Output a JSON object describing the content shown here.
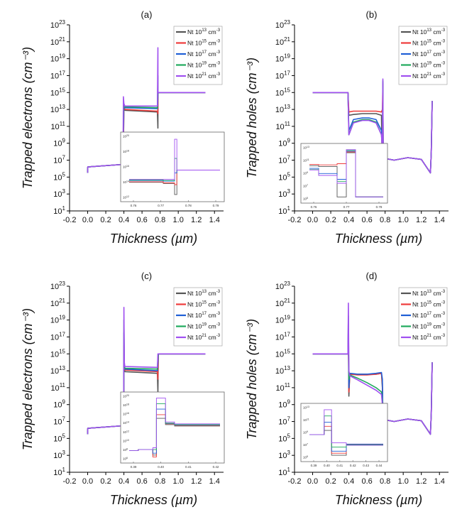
{
  "figure": {
    "common": {
      "xlabel": "Thickness (µm)",
      "x_ticks": [
        "-0.2",
        "0.0",
        "0.2",
        "0.4",
        "0.6",
        "0.8",
        "1.0",
        "1.2",
        "1.4"
      ],
      "y_exponents": [
        "1",
        "3",
        "5",
        "7",
        "9",
        "11",
        "13",
        "15",
        "17",
        "19",
        "21",
        "23"
      ],
      "y_base": "10",
      "legend": {
        "prefix": "Nt 10",
        "exponents": [
          "13",
          "15",
          "17",
          "19",
          "21"
        ],
        "unit": " cm",
        "unit_exp": "-3"
      },
      "colors": [
        "#555555",
        "#ee3b3b",
        "#1f5fd6",
        "#1faa5c",
        "#a050f0"
      ]
    }
  },
  "chart_data": [
    {
      "panel": "(a)",
      "type": "line",
      "ylabel": "Trapped electrons (cm⁻³)",
      "yscale": "log",
      "xlim": [
        -0.2,
        1.5
      ],
      "ylim": [
        1,
        1e+23
      ],
      "series": [
        {
          "name": "Nt 10^13 cm^-3",
          "x": [
            0.0,
            0.001,
            0.39,
            0.395,
            0.4,
            0.41,
            0.77,
            0.775,
            0.776,
            0.78,
            1.3
          ],
          "y_log10": [
            5.5,
            6.2,
            6.5,
            8.5,
            13.3,
            12.9,
            12.7,
            10.8,
            15.0,
            15.0,
            15.0
          ]
        },
        {
          "name": "Nt 10^15 cm^-3",
          "x": [
            0.0,
            0.001,
            0.39,
            0.395,
            0.4,
            0.41,
            0.77,
            0.775,
            0.776,
            0.78,
            1.3
          ],
          "y_log10": [
            5.5,
            6.2,
            6.5,
            8.5,
            13.4,
            13.0,
            12.8,
            12.5,
            15.0,
            15.0,
            15.0
          ]
        },
        {
          "name": "Nt 10^17 cm^-3",
          "x": [
            0.0,
            0.001,
            0.39,
            0.395,
            0.4,
            0.41,
            0.77,
            0.775,
            0.776,
            0.78,
            1.3
          ],
          "y_log10": [
            5.5,
            6.2,
            6.5,
            10.5,
            13.5,
            13.2,
            13.1,
            14.5,
            15.0,
            15.0,
            15.0
          ]
        },
        {
          "name": "Nt 10^19 cm^-3",
          "x": [
            0.0,
            0.001,
            0.39,
            0.395,
            0.4,
            0.41,
            0.77,
            0.775,
            0.776,
            0.78,
            1.3
          ],
          "y_log10": [
            5.5,
            6.2,
            6.5,
            12.0,
            13.6,
            13.3,
            13.2,
            17.0,
            15.0,
            15.0,
            15.0
          ]
        },
        {
          "name": "Nt 10^21 cm^-3",
          "x": [
            0.0,
            0.001,
            0.39,
            0.395,
            0.4,
            0.41,
            0.77,
            0.775,
            0.776,
            0.78,
            1.3
          ],
          "y_log10": [
            5.5,
            6.2,
            6.5,
            14.5,
            13.7,
            13.4,
            13.4,
            20.3,
            15.0,
            15.0,
            15.0
          ]
        }
      ],
      "inset": {
        "x_ticks": [
          "0.76",
          "0.77",
          "0.78",
          "0.79"
        ],
        "y_exponents": [
          "12",
          "14",
          "16",
          "18",
          "20"
        ]
      }
    },
    {
      "panel": "(b)",
      "type": "line",
      "ylabel": "Trapped holes (cm⁻³)",
      "yscale": "log",
      "xlim": [
        -0.2,
        1.5
      ],
      "ylim": [
        1,
        1e+23
      ],
      "series": [
        {
          "name": "Nt 10^13 cm^-3",
          "x": [
            0.0,
            0.39,
            0.4,
            0.45,
            0.55,
            0.62,
            0.7,
            0.76,
            0.77,
            0.775,
            0.78,
            0.8,
            0.9,
            1.05,
            1.2,
            1.3,
            1.31,
            1.32
          ],
          "y_log10": [
            15.0,
            15.0,
            12.3,
            12.4,
            12.5,
            12.5,
            12.5,
            12.3,
            4.5,
            15.8,
            4.5,
            7.2,
            7.0,
            7.3,
            7.1,
            5.5,
            8.0,
            14.0
          ]
        },
        {
          "name": "Nt 10^15 cm^-3",
          "x": [
            0.0,
            0.39,
            0.4,
            0.45,
            0.55,
            0.62,
            0.7,
            0.76,
            0.77,
            0.775,
            0.78,
            0.8,
            0.9,
            1.05,
            1.2,
            1.3,
            1.31,
            1.32
          ],
          "y_log10": [
            15.0,
            15.0,
            12.7,
            12.8,
            12.8,
            12.8,
            12.8,
            12.7,
            13.0,
            16.0,
            4.5,
            7.2,
            7.0,
            7.3,
            7.1,
            5.5,
            8.0,
            14.0
          ]
        },
        {
          "name": "Nt 10^17 cm^-3",
          "x": [
            0.0,
            0.39,
            0.4,
            0.45,
            0.55,
            0.62,
            0.7,
            0.76,
            0.77,
            0.775,
            0.78,
            0.8,
            0.9,
            1.05,
            1.2,
            1.3,
            1.31,
            1.32
          ],
          "y_log10": [
            15.0,
            15.0,
            10.5,
            11.8,
            12.0,
            12.0,
            11.8,
            10.5,
            9.0,
            16.2,
            4.5,
            7.2,
            7.0,
            7.3,
            7.1,
            5.5,
            8.0,
            14.0
          ]
        },
        {
          "name": "Nt 10^19 cm^-3",
          "x": [
            0.0,
            0.39,
            0.4,
            0.45,
            0.55,
            0.62,
            0.7,
            0.76,
            0.77,
            0.775,
            0.78,
            0.8,
            0.9,
            1.05,
            1.2,
            1.3,
            1.31,
            1.32
          ],
          "y_log10": [
            15.0,
            15.0,
            10.0,
            11.5,
            11.8,
            11.8,
            11.5,
            10.0,
            8.5,
            16.4,
            4.5,
            7.2,
            7.0,
            7.3,
            7.1,
            5.5,
            8.0,
            14.0
          ]
        },
        {
          "name": "Nt 10^21 cm^-3",
          "x": [
            0.0,
            0.39,
            0.4,
            0.45,
            0.55,
            0.62,
            0.7,
            0.76,
            0.77,
            0.775,
            0.78,
            0.8,
            0.9,
            1.05,
            1.2,
            1.3,
            1.31,
            1.32
          ],
          "y_log10": [
            15.0,
            15.0,
            10.0,
            11.4,
            11.7,
            11.7,
            11.4,
            10.0,
            8.0,
            16.6,
            4.5,
            7.2,
            7.0,
            7.3,
            7.1,
            5.5,
            8.0,
            14.0
          ]
        }
      ],
      "inset": {
        "x_ticks": [
          "0.76",
          "0.77",
          "0.78"
        ],
        "y_exponents": [
          "5",
          "7",
          "9",
          "11",
          "13"
        ]
      }
    },
    {
      "panel": "(c)",
      "type": "line",
      "ylabel": "Trapped electrons (cm⁻³)",
      "yscale": "log",
      "xlim": [
        -0.2,
        1.5
      ],
      "ylim": [
        1,
        1e+23
      ],
      "series": [
        {
          "name": "Nt 10^13 cm^-3",
          "x": [
            0.0,
            0.001,
            0.39,
            0.398,
            0.4,
            0.405,
            0.41,
            0.77,
            0.775,
            0.78,
            1.3
          ],
          "y_log10": [
            5.5,
            6.2,
            6.5,
            5.0,
            15.0,
            13.3,
            12.9,
            12.7,
            10.5,
            15.0,
            15.0
          ]
        },
        {
          "name": "Nt 10^15 cm^-3",
          "x": [
            0.0,
            0.001,
            0.39,
            0.398,
            0.4,
            0.405,
            0.41,
            0.77,
            0.775,
            0.78,
            1.3
          ],
          "y_log10": [
            5.5,
            6.2,
            6.5,
            4.5,
            16.0,
            13.5,
            13.1,
            12.9,
            12.0,
            15.0,
            15.0
          ]
        },
        {
          "name": "Nt 10^17 cm^-3",
          "x": [
            0.0,
            0.001,
            0.39,
            0.398,
            0.4,
            0.405,
            0.41,
            0.77,
            0.775,
            0.78,
            1.3
          ],
          "y_log10": [
            5.5,
            6.2,
            6.5,
            5.5,
            17.5,
            13.6,
            13.2,
            13.0,
            14.0,
            15.0,
            15.0
          ]
        },
        {
          "name": "Nt 10^19 cm^-3",
          "x": [
            0.0,
            0.001,
            0.39,
            0.398,
            0.4,
            0.405,
            0.41,
            0.77,
            0.775,
            0.78,
            1.3
          ],
          "y_log10": [
            5.5,
            6.2,
            6.5,
            6.5,
            19.0,
            13.7,
            13.3,
            13.2,
            14.5,
            15.0,
            15.0
          ]
        },
        {
          "name": "Nt 10^21 cm^-3",
          "x": [
            0.0,
            0.001,
            0.39,
            0.398,
            0.4,
            0.405,
            0.41,
            0.77,
            0.775,
            0.78,
            1.3
          ],
          "y_log10": [
            5.5,
            6.2,
            6.5,
            7.0,
            20.5,
            14.0,
            13.5,
            13.4,
            15.0,
            15.0,
            15.0
          ]
        }
      ],
      "inset": {
        "x_ticks": [
          "0.39",
          "0.40",
          "0.41",
          "0.42"
        ],
        "y_exponents": [
          "6",
          "8",
          "10",
          "12",
          "14",
          "16",
          "18",
          "20"
        ]
      }
    },
    {
      "panel": "(d)",
      "type": "line",
      "ylabel": "Trapped holes (cm⁻³)",
      "yscale": "log",
      "xlim": [
        -0.2,
        1.5
      ],
      "ylim": [
        1,
        1e+23
      ],
      "series": [
        {
          "name": "Nt 10^13 cm^-3",
          "x": [
            0.0,
            0.39,
            0.395,
            0.4,
            0.41,
            0.5,
            0.6,
            0.7,
            0.76,
            0.77,
            0.78,
            0.8,
            0.9,
            1.05,
            1.2,
            1.3,
            1.31,
            1.32
          ],
          "y_log10": [
            15.0,
            15.0,
            16.0,
            10.0,
            12.6,
            12.6,
            12.6,
            12.6,
            12.7,
            11.0,
            4.5,
            7.2,
            7.0,
            7.3,
            7.1,
            5.5,
            8.0,
            14.0
          ]
        },
        {
          "name": "Nt 10^15 cm^-3",
          "x": [
            0.0,
            0.39,
            0.395,
            0.4,
            0.41,
            0.5,
            0.6,
            0.7,
            0.76,
            0.77,
            0.78,
            0.8,
            0.9,
            1.05,
            1.2,
            1.3,
            1.31,
            1.32
          ],
          "y_log10": [
            15.0,
            15.0,
            17.0,
            10.5,
            12.6,
            12.5,
            12.5,
            12.6,
            12.7,
            11.5,
            4.5,
            7.2,
            7.0,
            7.3,
            7.1,
            5.5,
            8.0,
            14.0
          ]
        },
        {
          "name": "Nt 10^17 cm^-3",
          "x": [
            0.0,
            0.39,
            0.395,
            0.4,
            0.41,
            0.5,
            0.6,
            0.7,
            0.76,
            0.77,
            0.78,
            0.8,
            0.9,
            1.05,
            1.2,
            1.3,
            1.31,
            1.32
          ],
          "y_log10": [
            15.0,
            15.0,
            18.0,
            11.0,
            12.7,
            12.6,
            12.6,
            12.7,
            12.8,
            12.0,
            4.5,
            7.2,
            7.0,
            7.3,
            7.1,
            5.5,
            8.0,
            14.0
          ]
        },
        {
          "name": "Nt 10^19 cm^-3",
          "x": [
            0.0,
            0.39,
            0.395,
            0.4,
            0.41,
            0.5,
            0.6,
            0.7,
            0.76,
            0.77,
            0.78,
            0.8,
            0.9,
            1.05,
            1.2,
            1.3,
            1.31,
            1.32
          ],
          "y_log10": [
            15.0,
            15.0,
            19.5,
            12.0,
            12.5,
            12.1,
            11.6,
            11.0,
            10.5,
            9.5,
            4.5,
            7.2,
            7.0,
            7.3,
            7.1,
            5.5,
            8.0,
            14.0
          ]
        },
        {
          "name": "Nt 10^21 cm^-3",
          "x": [
            0.0,
            0.39,
            0.395,
            0.4,
            0.41,
            0.5,
            0.6,
            0.7,
            0.76,
            0.77,
            0.78,
            0.8,
            0.9,
            1.05,
            1.2,
            1.3,
            1.31,
            1.32
          ],
          "y_log10": [
            15.0,
            15.0,
            21.0,
            13.0,
            12.4,
            11.9,
            11.3,
            10.7,
            10.2,
            9.0,
            4.5,
            7.2,
            7.0,
            7.3,
            7.1,
            5.5,
            8.0,
            14.0
          ]
        }
      ],
      "inset": {
        "x_ticks": [
          "0.39",
          "0.40",
          "0.41",
          "0.42",
          "0.43",
          "0.44"
        ],
        "y_exponents": [
          "5",
          "7",
          "9",
          "11",
          "13"
        ]
      }
    }
  ]
}
